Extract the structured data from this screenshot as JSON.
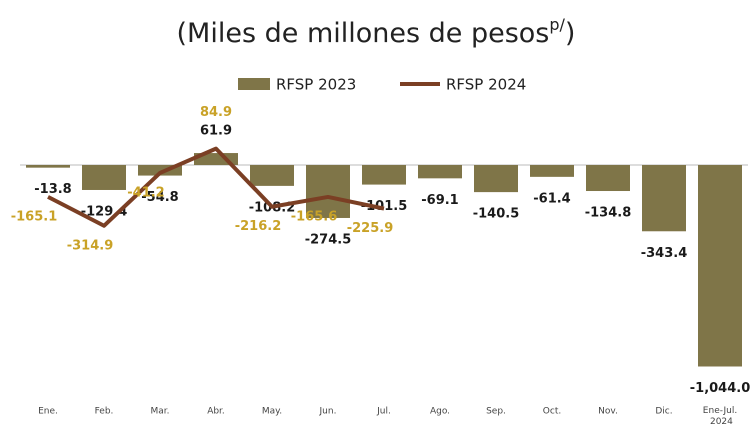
{
  "chart_data": {
    "type": "bar-line",
    "title": "(Miles de millones de pesos",
    "title_superscript": "p/",
    "title_end": ")",
    "categories": [
      "Ene.",
      "Feb.",
      "Mar.",
      "Abr.",
      "May.",
      "Jun.",
      "Jul.",
      "Ago.",
      "Sep.",
      "Oct.",
      "Nov.",
      "Dic.",
      "Ene-Jul. 2024"
    ],
    "series": [
      {
        "name": "RFSP 2023",
        "type": "bar",
        "color": "#7f7548",
        "label_color": "#1a1a1a",
        "values": [
          -13.8,
          -129.4,
          -54.8,
          61.9,
          -108.2,
          -274.5,
          -101.5,
          -69.1,
          -140.5,
          -61.4,
          -134.8,
          -343.4,
          -1044.0
        ],
        "value_labels": [
          "-13.8",
          "-129.4",
          "-54.8",
          "61.9",
          "-108.2",
          "-274.5",
          "-101.5",
          "-69.1",
          "-140.5",
          "-61.4",
          "-134.8",
          "-343.4",
          "-1,044.0"
        ]
      },
      {
        "name": "RFSP 2024",
        "type": "line",
        "color": "#7b3f24",
        "label_color": "#c9a227",
        "values": [
          -165.1,
          -314.9,
          -41.2,
          84.9,
          -216.2,
          -165.6,
          -225.9,
          null,
          null,
          null,
          null,
          null,
          null
        ],
        "value_labels": [
          "-165.1",
          "-314.9",
          "-41.2",
          "84.9",
          "-216.2",
          "-165.6",
          "-225.9",
          null,
          null,
          null,
          null,
          null,
          null
        ]
      }
    ]
  }
}
